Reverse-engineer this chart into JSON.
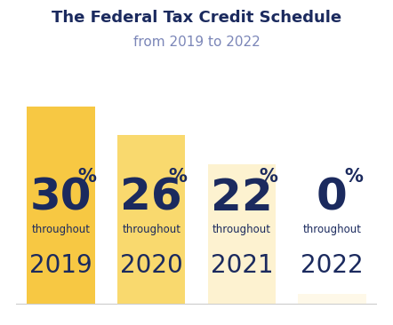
{
  "title": "The Federal Tax Credit Schedule",
  "subtitle": "from 2019 to 2022",
  "title_color": "#1b2a5e",
  "subtitle_color": "#7b86b8",
  "background_color": "#ffffff",
  "bars": [
    {
      "year": "2019",
      "value": "30",
      "bar_height": 0.82,
      "color": "#f7c843"
    },
    {
      "year": "2020",
      "value": "26",
      "bar_height": 0.7,
      "color": "#f9d96e"
    },
    {
      "year": "2021",
      "value": "22",
      "bar_height": 0.58,
      "color": "#fdf2d0"
    },
    {
      "year": "2022",
      "value": "0",
      "bar_height": 0.04,
      "color": "#fef8e8"
    }
  ],
  "bar_width": 0.75,
  "label_color": "#1b2a5e",
  "value_fontsize": 36,
  "percent_fontsize": 15,
  "throughout_fontsize": 8.5,
  "year_fontsize": 20,
  "title_fontsize": 13,
  "subtitle_fontsize": 11
}
